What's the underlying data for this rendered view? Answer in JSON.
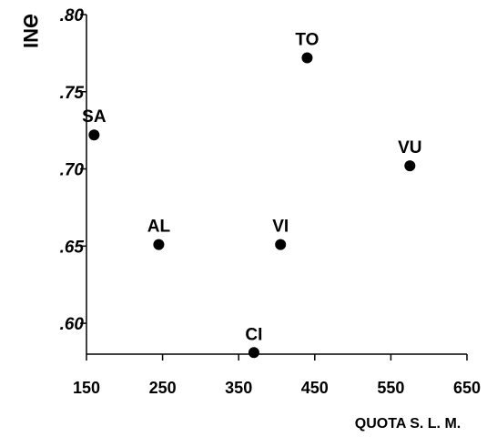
{
  "chart_data": {
    "type": "scatter",
    "title": "",
    "xlabel": "QUOTA S. L. M.",
    "ylabel": "ƏNI",
    "xlim": [
      150,
      650
    ],
    "ylim": [
      0.58,
      0.8
    ],
    "x_ticks": [
      150,
      250,
      350,
      450,
      550,
      650
    ],
    "x_tick_labels": [
      "150",
      "250",
      "350",
      "450",
      "550",
      "650"
    ],
    "y_ticks": [
      0.6,
      0.65,
      0.7,
      0.75,
      0.8
    ],
    "y_tick_labels": [
      ".60",
      ".65",
      ".70",
      ".75",
      ".80"
    ],
    "grid": false,
    "colors": {
      "marker": "#000000",
      "axis": "#000000"
    },
    "points": [
      {
        "label": "SA",
        "x": 160,
        "y": 0.722
      },
      {
        "label": "AL",
        "x": 245,
        "y": 0.651
      },
      {
        "label": "CI",
        "x": 370,
        "y": 0.581
      },
      {
        "label": "VI",
        "x": 405,
        "y": 0.651
      },
      {
        "label": "TO",
        "x": 440,
        "y": 0.772
      },
      {
        "label": "VU",
        "x": 575,
        "y": 0.702
      }
    ]
  }
}
